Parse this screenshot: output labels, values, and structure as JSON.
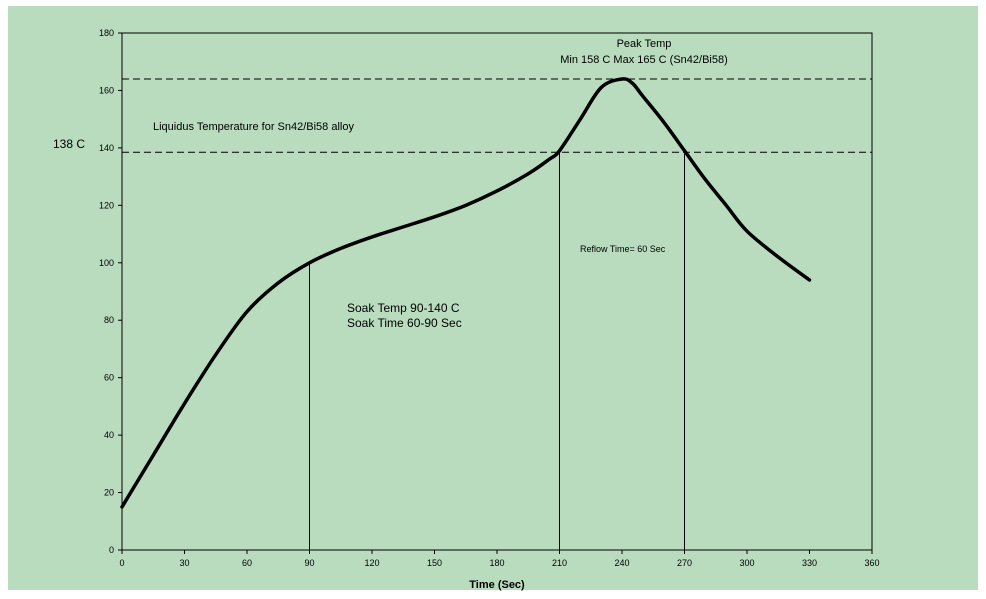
{
  "colors": {
    "background": "#b8dcbd",
    "curve": "#000000",
    "axis": "#000000",
    "page": "#ffffff"
  },
  "chart_data": {
    "type": "line",
    "title": "",
    "xlabel": "Time (Sec)",
    "ylabel": "",
    "xlim": [
      0,
      360
    ],
    "ylim": [
      0,
      180
    ],
    "x_ticks": [
      0,
      30,
      60,
      90,
      120,
      150,
      180,
      210,
      240,
      270,
      300,
      330,
      360
    ],
    "y_ticks": [
      0,
      20,
      40,
      60,
      80,
      100,
      120,
      140,
      160,
      180
    ],
    "grid": false,
    "legend": "none",
    "series": [
      {
        "x": [
          0,
          15,
          30,
          45,
          60,
          75,
          90,
          105,
          120,
          135,
          150,
          165,
          180,
          195,
          205,
          210,
          220,
          230,
          240,
          245,
          250,
          260,
          270,
          280,
          290,
          300,
          315,
          330
        ],
        "y": [
          15,
          33,
          51,
          68,
          83,
          93,
          100,
          105,
          109,
          112.5,
          116,
          120,
          125,
          131,
          136,
          139,
          150,
          161,
          164,
          162.5,
          158,
          149,
          139,
          129,
          120,
          111,
          102,
          94
        ]
      }
    ],
    "reference_lines": {
      "horizontal": [
        {
          "y": 164,
          "style": "dashed"
        },
        {
          "y": 138.5,
          "style": "dashed"
        }
      ],
      "vertical": [
        {
          "x": 90,
          "from_y": 0,
          "to_y": 100
        },
        {
          "x": 210,
          "from_y": 0,
          "to_y": 139
        },
        {
          "x": 270,
          "from_y": 0,
          "to_y": 139
        }
      ]
    },
    "annotations": {
      "peak_temp": "Peak Temp",
      "peak_range": "Min 158 C Max 165 C (Sn42/Bi58)",
      "liquidus": "Liquidus Temperature for Sn42/Bi58 alloy",
      "liquidus_value": "138 C",
      "soak_temp": "Soak Temp 90-140 C",
      "soak_time": "Soak Time 60-90 Sec",
      "reflow_time": "Reflow Time= 60 Sec"
    }
  }
}
